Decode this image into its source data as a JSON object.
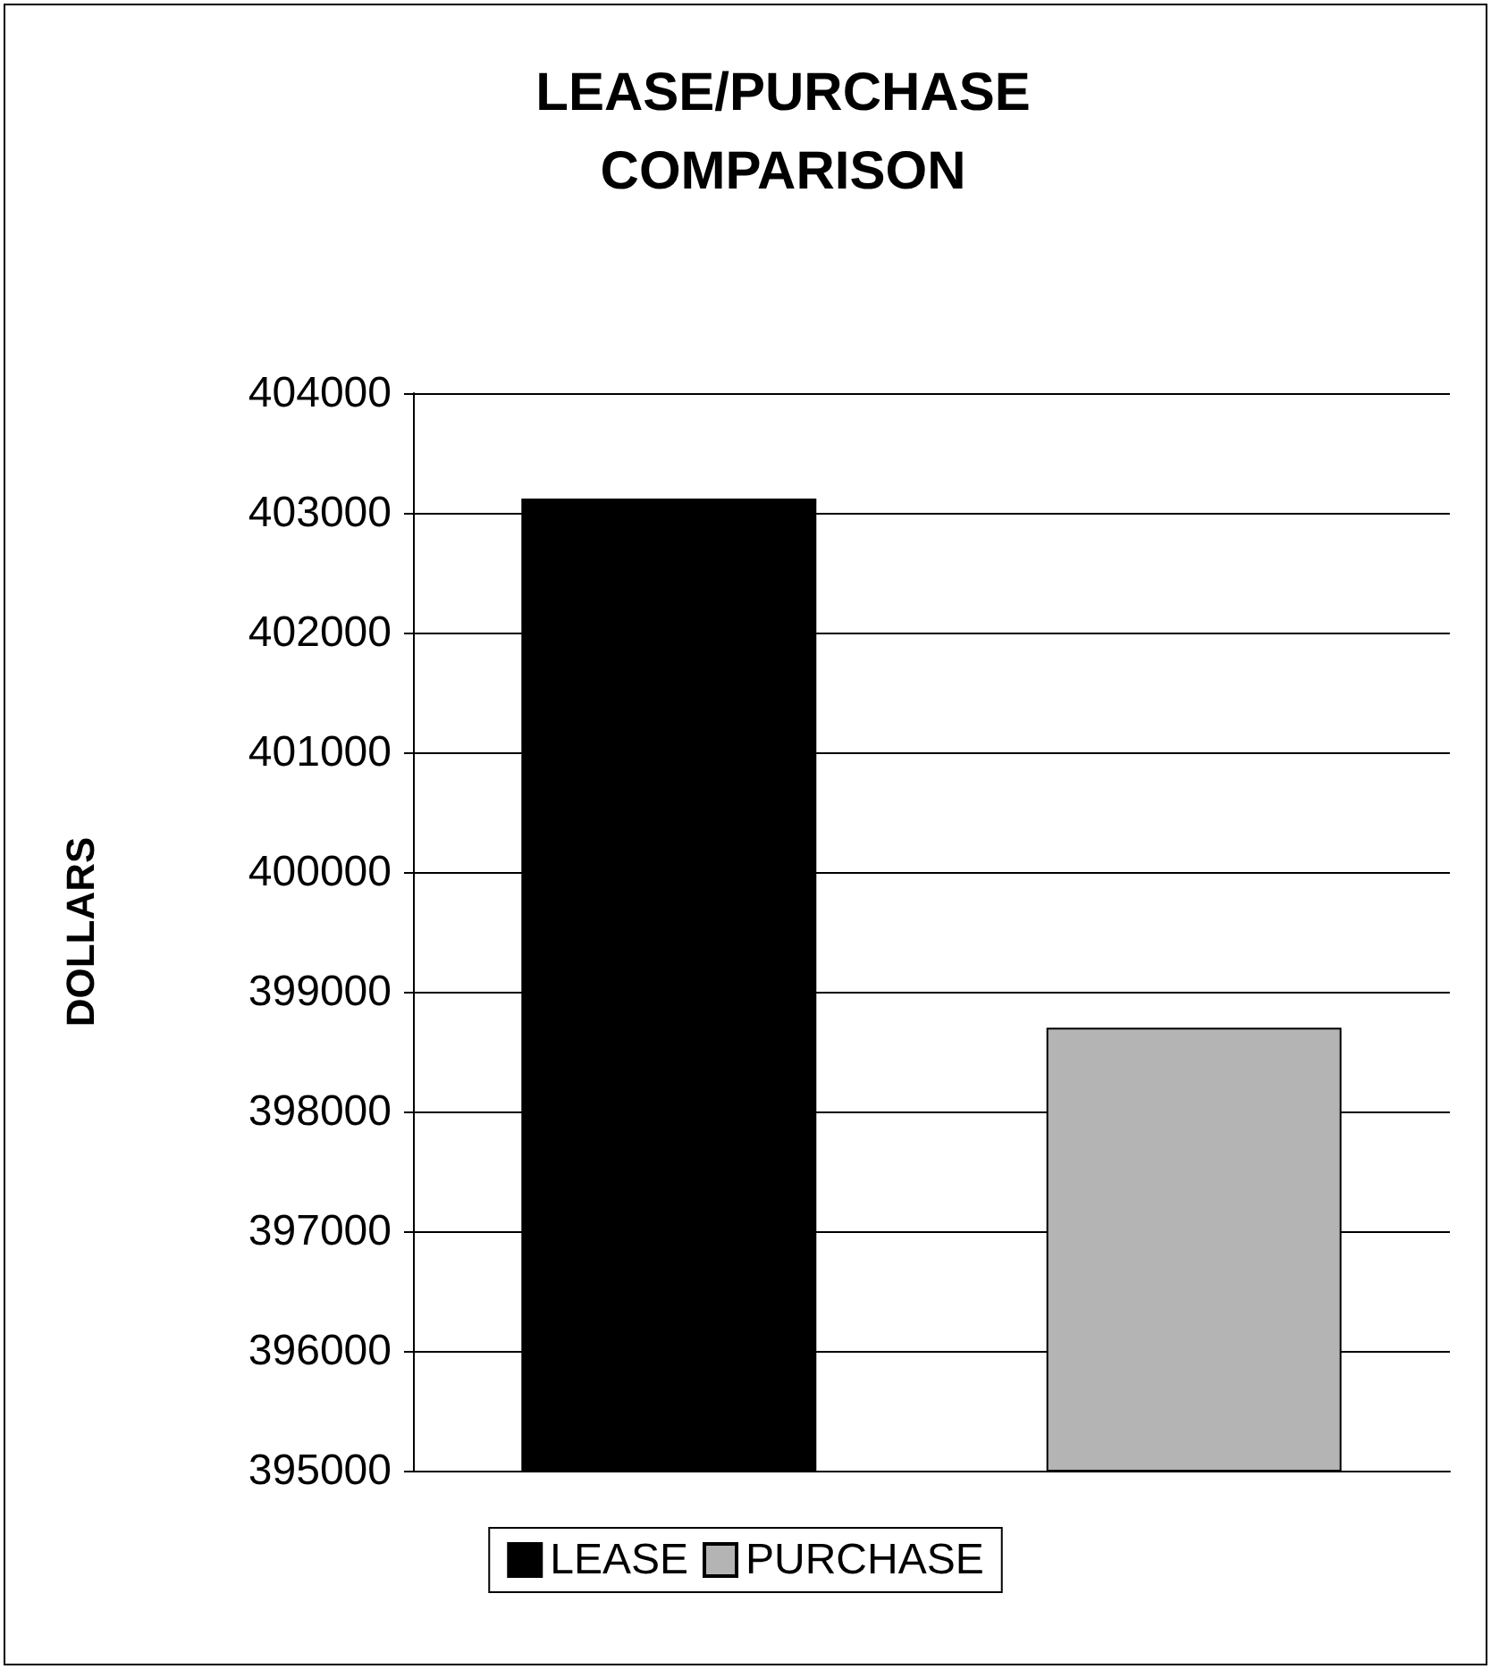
{
  "chart_data": {
    "type": "bar",
    "title": "LEASE/PURCHASE\nCOMPARISON",
    "ylabel": "DOLLARS",
    "categories": [
      null
    ],
    "series": [
      {
        "name": "LEASE",
        "color": "#000000",
        "values": [
          403120
        ]
      },
      {
        "name": "PURCHASE",
        "color": "#b4b4b4",
        "values": [
          398700
        ]
      }
    ],
    "ylim": [
      395000,
      404000
    ],
    "yticks": [
      395000,
      396000,
      397000,
      398000,
      399000,
      400000,
      401000,
      402000,
      403000,
      404000
    ],
    "grid": "y",
    "legend": "bottom"
  }
}
